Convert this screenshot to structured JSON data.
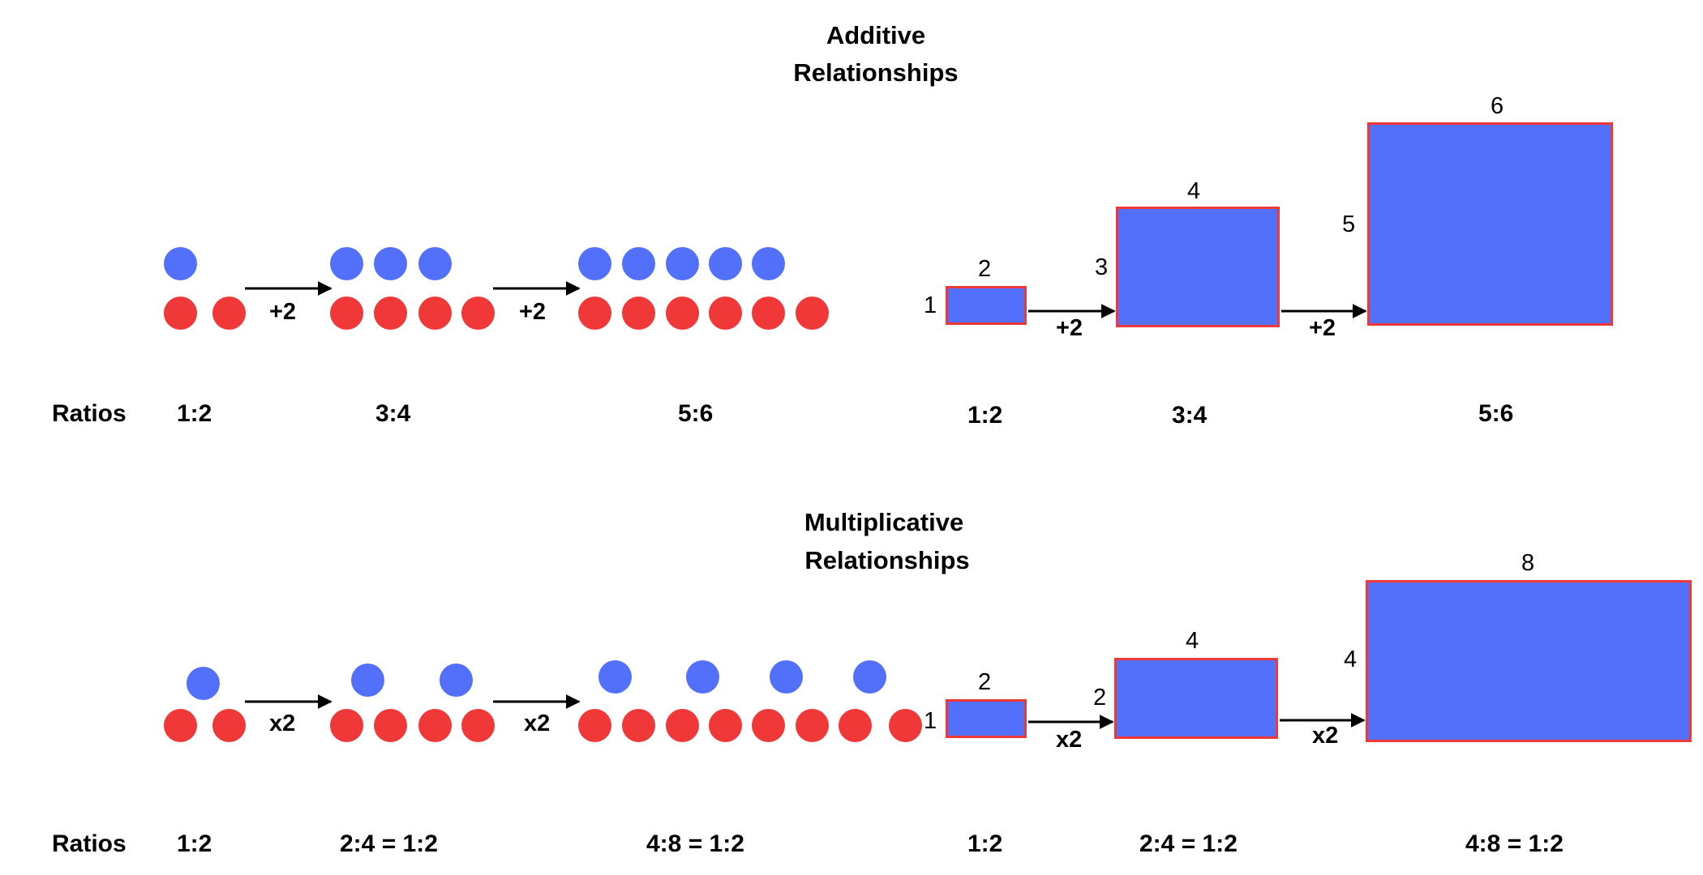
{
  "colors": {
    "top_dot": "#5370fb",
    "bottom_dot": "#f03838",
    "rect_fill": "#5370fb",
    "rect_border": "#f03838"
  },
  "additive": {
    "title_line1": "Additive",
    "title_line2": "Relationships",
    "row_label": "Ratios",
    "dot_stages": [
      {
        "top": 1,
        "bottom": 2,
        "ratio": "1:2"
      },
      {
        "top": 3,
        "bottom": 4,
        "ratio": "3:4"
      },
      {
        "top": 5,
        "bottom": 6,
        "ratio": "5:6"
      }
    ],
    "dot_operators": [
      "+2",
      "+2"
    ],
    "rect_stages": [
      {
        "width_label": "2",
        "height_label": "1",
        "ratio": "1:2"
      },
      {
        "width_label": "4",
        "height_label": "3",
        "ratio": "3:4"
      },
      {
        "width_label": "6",
        "height_label": "5",
        "ratio": "5:6"
      }
    ],
    "rect_operators": [
      "+2",
      "+2"
    ]
  },
  "multiplicative": {
    "title_line1": "Multiplicative",
    "title_line2": "Relationships",
    "row_label": "Ratios",
    "dot_stages": [
      {
        "top": 1,
        "bottom": 2,
        "ratio": "1:2"
      },
      {
        "top": 2,
        "bottom": 4,
        "ratio": "2:4 = 1:2"
      },
      {
        "top": 4,
        "bottom": 8,
        "ratio": "4:8 = 1:2"
      }
    ],
    "dot_operators": [
      "x2",
      "x2"
    ],
    "rect_stages": [
      {
        "width_label": "2",
        "height_label": "1",
        "ratio": "1:2"
      },
      {
        "width_label": "4",
        "height_label": "2",
        "ratio": "2:4 = 1:2"
      },
      {
        "width_label": "8",
        "height_label": "4",
        "ratio": "4:8 = 1:2"
      }
    ],
    "rect_operators": [
      "x2",
      "x2"
    ]
  }
}
